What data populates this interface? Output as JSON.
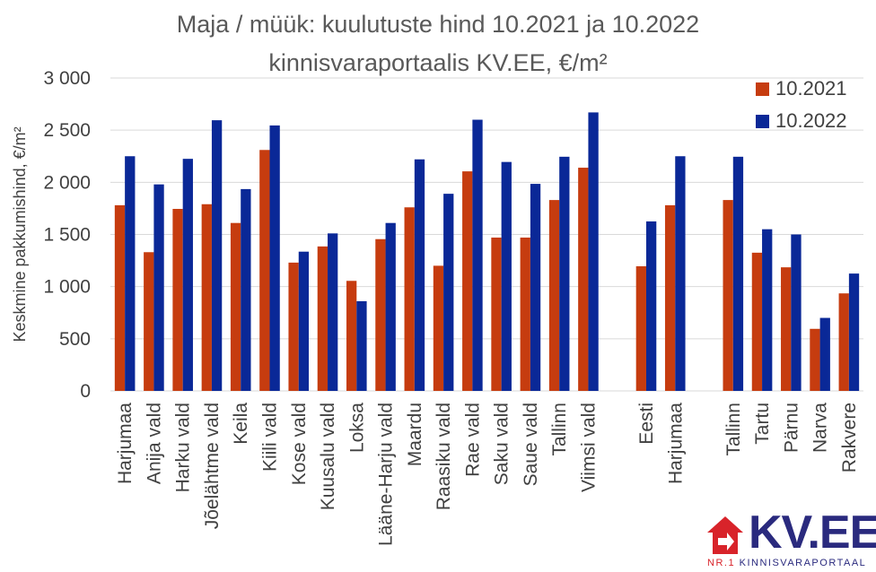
{
  "chart_data": {
    "type": "bar",
    "title": "Maja / müük: kuulutuste hind 10.2021 ja 10.2022",
    "subtitle": "kinnisvaraportaalis KV.EE, €/m²",
    "ylabel": "Keskmine pakkumishind, €/m²",
    "xlabel": "",
    "ylim": [
      0,
      3000
    ],
    "yticks": [
      0,
      500,
      1000,
      1500,
      2000,
      2500,
      3000
    ],
    "ytick_labels": [
      "0",
      "500",
      "1 000",
      "1 500",
      "2 000",
      "2 500",
      "3 000"
    ],
    "grid": true,
    "legend_position": "top-right",
    "categories": [
      "Harjumaa",
      "Anija vald",
      "Harku vald",
      "Jõelähtme vald",
      "Keila",
      "Kiili vald",
      "Kose vald",
      "Kuusalu vald",
      "Loksa",
      "Lääne-Harju vald",
      "Maardu",
      "Raasiku vald",
      "Rae vald",
      "Saku vald",
      "Saue vald",
      "Tallinn",
      "Viimsi vald",
      "",
      "Eesti",
      "Harjumaa",
      "",
      "Tallinn",
      "Tartu",
      "Pärnu",
      "Narva",
      "Rakvere"
    ],
    "series": [
      {
        "name": "10.2021",
        "color": "#c63c0f",
        "values": [
          1780,
          1330,
          1745,
          1790,
          1610,
          2310,
          1230,
          1385,
          1055,
          1455,
          1760,
          1200,
          2105,
          1470,
          1470,
          1830,
          2140,
          null,
          1195,
          1780,
          null,
          1830,
          1325,
          1185,
          595,
          935
        ]
      },
      {
        "name": "10.2022",
        "color": "#0a2897",
        "values": [
          2250,
          1980,
          2225,
          2595,
          1935,
          2545,
          1335,
          1510,
          860,
          1610,
          2220,
          1890,
          2600,
          2195,
          1985,
          2245,
          2670,
          null,
          1625,
          2250,
          null,
          2245,
          1550,
          1500,
          700,
          1125
        ]
      }
    ]
  },
  "logo": {
    "wordmark": "KV.EE",
    "tagline_prefix": "NR.1",
    "tagline": "KINNISVARAPORTAAL"
  }
}
